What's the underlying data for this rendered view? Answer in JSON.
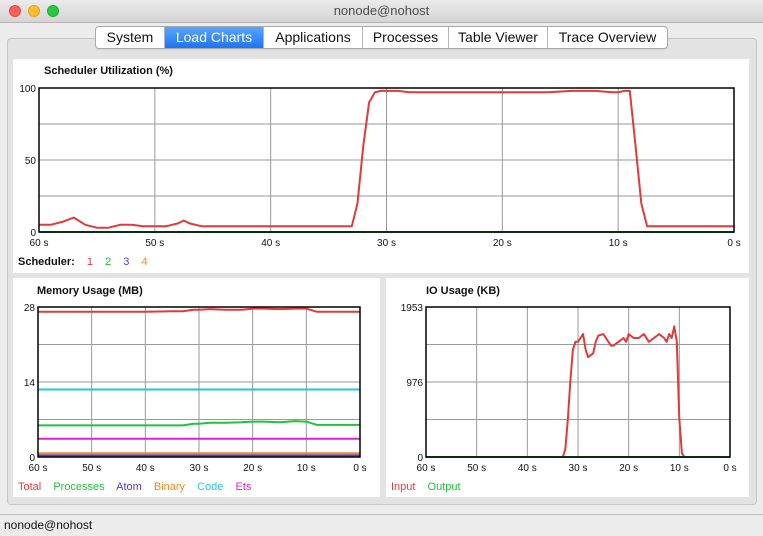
{
  "window": {
    "title": "nonode@nohost"
  },
  "tabs": [
    {
      "label": "System",
      "active": false
    },
    {
      "label": "Load Charts",
      "active": true
    },
    {
      "label": "Applications",
      "active": false
    },
    {
      "label": "Processes",
      "active": false
    },
    {
      "label": "Table Viewer",
      "active": false
    },
    {
      "label": "Trace Overview",
      "active": false
    }
  ],
  "scheduler": {
    "title": "Scheduler Utilization (%)",
    "legend_label": "Scheduler:",
    "legend": [
      {
        "name": "1",
        "color": "#e03a3a"
      },
      {
        "name": "2",
        "color": "#22c23a"
      },
      {
        "name": "3",
        "color": "#5b35d5"
      },
      {
        "name": "4",
        "color": "#f08a24"
      }
    ]
  },
  "memory": {
    "title": "Memory Usage (MB)",
    "legend": [
      {
        "name": "Total",
        "color": "#e03a3a"
      },
      {
        "name": "Processes",
        "color": "#22c23a"
      },
      {
        "name": "Atom",
        "color": "#5b35d5"
      },
      {
        "name": "Binary",
        "color": "#f08a24"
      },
      {
        "name": "Code",
        "color": "#22c8d8"
      },
      {
        "name": "Ets",
        "color": "#e020d0"
      }
    ]
  },
  "io": {
    "title": "IO Usage (KB)",
    "legend": [
      {
        "name": "Input",
        "color": "#e03a3a"
      },
      {
        "name": "Output",
        "color": "#22c23a"
      }
    ]
  },
  "status": {
    "text": "nonode@nohost"
  },
  "chart_data": [
    {
      "type": "line",
      "title": "Scheduler Utilization (%)",
      "x_ticks": [
        "60 s",
        "50 s",
        "40 s",
        "30 s",
        "20 s",
        "10 s",
        "0 s"
      ],
      "y_ticks": [
        "0",
        "50",
        "100"
      ],
      "xlim": [
        60,
        0
      ],
      "ylim": [
        0,
        100
      ],
      "grid": true,
      "x": [
        60,
        59,
        58,
        57,
        56,
        55,
        54,
        53,
        52,
        51,
        50,
        49,
        48,
        47.5,
        47,
        46,
        45,
        44,
        42,
        40,
        38,
        36,
        34,
        33,
        32.5,
        32,
        31.5,
        31,
        30.5,
        30,
        29,
        28,
        26,
        24,
        22,
        20,
        18,
        16,
        14,
        12,
        10.5,
        10,
        9.5,
        9,
        8.5,
        8,
        7.5,
        7,
        6,
        5,
        4,
        2,
        0
      ],
      "series": [
        {
          "name": "1",
          "values": [
            5,
            5,
            7,
            10,
            5,
            3,
            3,
            5,
            5,
            4,
            4,
            4,
            6,
            8,
            6,
            4,
            4,
            4,
            4,
            4,
            4,
            4,
            4,
            4,
            20,
            60,
            90,
            97,
            98,
            98,
            98,
            97,
            97,
            97,
            97,
            97,
            97,
            97,
            98,
            98,
            97,
            97,
            98,
            98,
            60,
            20,
            4,
            4,
            4,
            4,
            4,
            4,
            4
          ]
        },
        {
          "name": "2",
          "values": [
            0,
            0,
            0,
            0,
            0,
            0,
            0,
            0,
            0,
            0,
            0,
            0,
            0,
            0,
            0,
            0,
            0,
            0,
            0,
            0,
            0,
            0,
            0,
            0,
            0,
            0,
            0,
            0,
            0,
            0,
            0,
            0,
            0,
            0,
            0,
            0,
            0,
            0,
            0,
            0,
            0,
            0,
            0,
            0,
            0,
            0,
            0,
            0,
            0,
            0,
            0,
            0,
            0
          ]
        }
      ]
    },
    {
      "type": "line",
      "title": "Memory Usage (MB)",
      "x_ticks": [
        "60 s",
        "50 s",
        "40 s",
        "30 s",
        "20 s",
        "10 s",
        "0 s"
      ],
      "y_ticks": [
        "0",
        "14",
        "28"
      ],
      "xlim": [
        60,
        0
      ],
      "ylim": [
        0,
        28
      ],
      "grid": true,
      "x": [
        60,
        55,
        50,
        45,
        40,
        35,
        33,
        31,
        30,
        28,
        25,
        22,
        20,
        18,
        15,
        12,
        10,
        8,
        5,
        2,
        0
      ],
      "series": [
        {
          "name": "Total",
          "values": [
            27.1,
            27.1,
            27.1,
            27.1,
            27.1,
            27.2,
            27.2,
            27.5,
            27.5,
            27.6,
            27.5,
            27.5,
            27.7,
            27.7,
            27.6,
            27.7,
            27.7,
            27.1,
            27.1,
            27.1,
            27.1
          ]
        },
        {
          "name": "Processes",
          "values": [
            5.9,
            5.9,
            5.9,
            5.9,
            5.9,
            5.9,
            5.9,
            6.2,
            6.2,
            6.4,
            6.4,
            6.5,
            6.6,
            6.6,
            6.5,
            6.7,
            6.6,
            6.0,
            6.0,
            6.0,
            6.0
          ]
        },
        {
          "name": "Atom",
          "values": [
            0.3,
            0.3,
            0.3,
            0.3,
            0.3,
            0.3,
            0.3,
            0.3,
            0.3,
            0.3,
            0.3,
            0.3,
            0.3,
            0.3,
            0.3,
            0.3,
            0.3,
            0.3,
            0.3,
            0.3,
            0.3
          ]
        },
        {
          "name": "Binary",
          "values": [
            0.7,
            0.7,
            0.7,
            0.7,
            0.7,
            0.7,
            0.7,
            0.7,
            0.7,
            0.7,
            0.7,
            0.7,
            0.7,
            0.7,
            0.7,
            0.7,
            0.7,
            0.7,
            0.7,
            0.7,
            0.7
          ]
        },
        {
          "name": "Code",
          "values": [
            12.6,
            12.6,
            12.6,
            12.6,
            12.6,
            12.6,
            12.6,
            12.6,
            12.6,
            12.6,
            12.6,
            12.6,
            12.6,
            12.6,
            12.6,
            12.6,
            12.6,
            12.6,
            12.6,
            12.6,
            12.6
          ]
        },
        {
          "name": "Ets",
          "values": [
            3.4,
            3.4,
            3.4,
            3.4,
            3.4,
            3.4,
            3.4,
            3.4,
            3.4,
            3.4,
            3.4,
            3.4,
            3.4,
            3.4,
            3.4,
            3.4,
            3.4,
            3.4,
            3.4,
            3.4,
            3.4
          ]
        }
      ]
    },
    {
      "type": "line",
      "title": "IO Usage (KB)",
      "x_ticks": [
        "60 s",
        "50 s",
        "40 s",
        "30 s",
        "20 s",
        "10 s",
        "0 s"
      ],
      "y_ticks": [
        "0",
        "976",
        "1953"
      ],
      "xlim": [
        60,
        0
      ],
      "ylim": [
        0,
        1953
      ],
      "grid": true,
      "x": [
        60,
        50,
        40,
        33,
        32.5,
        32,
        31.5,
        31,
        30.5,
        30,
        29.5,
        29,
        28.5,
        28,
        27,
        26.5,
        26,
        25,
        24,
        23.5,
        23,
        22,
        21,
        20.5,
        20,
        19,
        18,
        17,
        16,
        15,
        14,
        13,
        12.5,
        12,
        11.5,
        11,
        10.5,
        10,
        9.5,
        9,
        8.5,
        8,
        7.5,
        7,
        6,
        0
      ],
      "series": [
        {
          "name": "Input",
          "values": [
            0,
            0,
            0,
            0,
            100,
            500,
            1000,
            1400,
            1500,
            1500,
            1550,
            1600,
            1400,
            1300,
            1350,
            1500,
            1580,
            1600,
            1500,
            1450,
            1450,
            1500,
            1550,
            1500,
            1600,
            1550,
            1550,
            1600,
            1500,
            1550,
            1600,
            1550,
            1500,
            1600,
            1550,
            1700,
            1500,
            500,
            50,
            0,
            0,
            0,
            0,
            0,
            0,
            0
          ]
        },
        {
          "name": "Output",
          "values": [
            0,
            0,
            0,
            0,
            0,
            0,
            0,
            0,
            0,
            0,
            0,
            0,
            0,
            0,
            0,
            0,
            0,
            0,
            0,
            0,
            0,
            0,
            0,
            0,
            0,
            0,
            0,
            0,
            0,
            0,
            0,
            0,
            0,
            0,
            0,
            0,
            0,
            0,
            0,
            0,
            0,
            0,
            0,
            0,
            0,
            0
          ]
        }
      ]
    }
  ]
}
